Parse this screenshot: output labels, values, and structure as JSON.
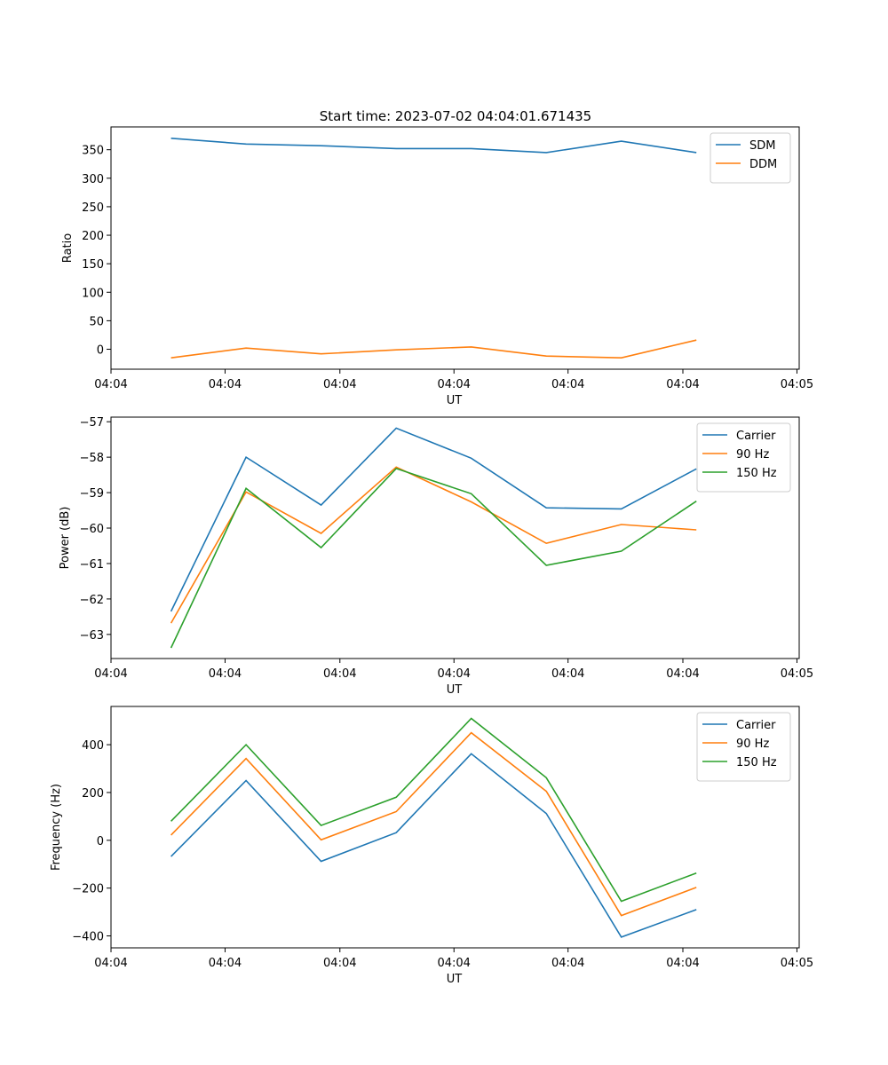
{
  "title": "Start time: 2023-07-02 04:04:01.671435",
  "chart_data": [
    {
      "type": "line",
      "title": "Start time: 2023-07-02 04:04:01.671435",
      "xlabel": "UT",
      "ylabel": "Ratio",
      "x": [
        1,
        2,
        3,
        4,
        5,
        6,
        7,
        8
      ],
      "xlim": [
        0.2,
        9.37
      ],
      "x_ticks": [
        0.2,
        1.72,
        3.25,
        4.77,
        6.29,
        7.82,
        9.34
      ],
      "x_tick_labels": [
        "04:04",
        "04:04",
        "04:04",
        "04:04",
        "04:04",
        "04:04",
        "04:05"
      ],
      "ylim": [
        -35,
        390
      ],
      "y_ticks": [
        0,
        50,
        100,
        150,
        200,
        250,
        300,
        350
      ],
      "y_tick_labels": [
        "0",
        "50",
        "100",
        "150",
        "200",
        "250",
        "300",
        "350"
      ],
      "legend_position": "top-right",
      "series": [
        {
          "name": "SDM",
          "color": "#1f77b4",
          "values": [
            370,
            360,
            357,
            352,
            352,
            345,
            365,
            345
          ]
        },
        {
          "name": "DDM",
          "color": "#ff7f0e",
          "values": [
            -15,
            2,
            -8,
            -1,
            4,
            -12,
            -15,
            16
          ]
        }
      ]
    },
    {
      "type": "line",
      "title": "",
      "xlabel": "UT",
      "ylabel": "Power (dB)",
      "x": [
        1,
        2,
        3,
        4,
        5,
        6,
        7,
        8
      ],
      "xlim": [
        0.2,
        9.37
      ],
      "x_ticks": [
        0.2,
        1.72,
        3.25,
        4.77,
        6.29,
        7.82,
        9.34
      ],
      "x_tick_labels": [
        "04:04",
        "04:04",
        "04:04",
        "04:04",
        "04:04",
        "04:04",
        "04:05"
      ],
      "ylim": [
        -63.68,
        -56.87
      ],
      "y_ticks": [
        -63,
        -62,
        -61,
        -60,
        -59,
        -58,
        -57
      ],
      "y_tick_labels": [
        "−63",
        "−62",
        "−61",
        "−60",
        "−59",
        "−58",
        "−57"
      ],
      "legend_position": "top-right",
      "series": [
        {
          "name": "Carrier",
          "color": "#1f77b4",
          "values": [
            -62.35,
            -58.0,
            -59.35,
            -57.18,
            -58.03,
            -59.43,
            -59.46,
            -58.33
          ]
        },
        {
          "name": "90 Hz",
          "color": "#ff7f0e",
          "values": [
            -62.68,
            -58.98,
            -60.15,
            -58.28,
            -59.26,
            -60.43,
            -59.9,
            -60.05
          ]
        },
        {
          "name": "150 Hz",
          "color": "#2ca02c",
          "values": [
            -63.38,
            -58.88,
            -60.55,
            -58.32,
            -59.03,
            -61.05,
            -60.65,
            -59.24
          ]
        }
      ]
    },
    {
      "type": "line",
      "title": "",
      "xlabel": "UT",
      "ylabel": "Frequency (Hz)",
      "x": [
        1,
        2,
        3,
        4,
        5,
        6,
        7,
        8
      ],
      "xlim": [
        0.2,
        9.37
      ],
      "x_ticks": [
        0.2,
        1.72,
        3.25,
        4.77,
        6.29,
        7.82,
        9.34
      ],
      "x_tick_labels": [
        "04:04",
        "04:04",
        "04:04",
        "04:04",
        "04:04",
        "04:04",
        "04:05"
      ],
      "ylim": [
        -450,
        560
      ],
      "y_ticks": [
        -400,
        -200,
        0,
        200,
        400
      ],
      "y_tick_labels": [
        "−400",
        "−200",
        "0",
        "200",
        "400"
      ],
      "legend_position": "top-right",
      "series": [
        {
          "name": "Carrier",
          "color": "#1f77b4",
          "values": [
            -68,
            250,
            -88,
            32,
            362,
            112,
            -405,
            -290
          ]
        },
        {
          "name": "90 Hz",
          "color": "#ff7f0e",
          "values": [
            22,
            342,
            2,
            120,
            450,
            205,
            -315,
            -197
          ]
        },
        {
          "name": "150 Hz",
          "color": "#2ca02c",
          "values": [
            80,
            400,
            62,
            180,
            510,
            262,
            -255,
            -137
          ]
        }
      ]
    }
  ]
}
